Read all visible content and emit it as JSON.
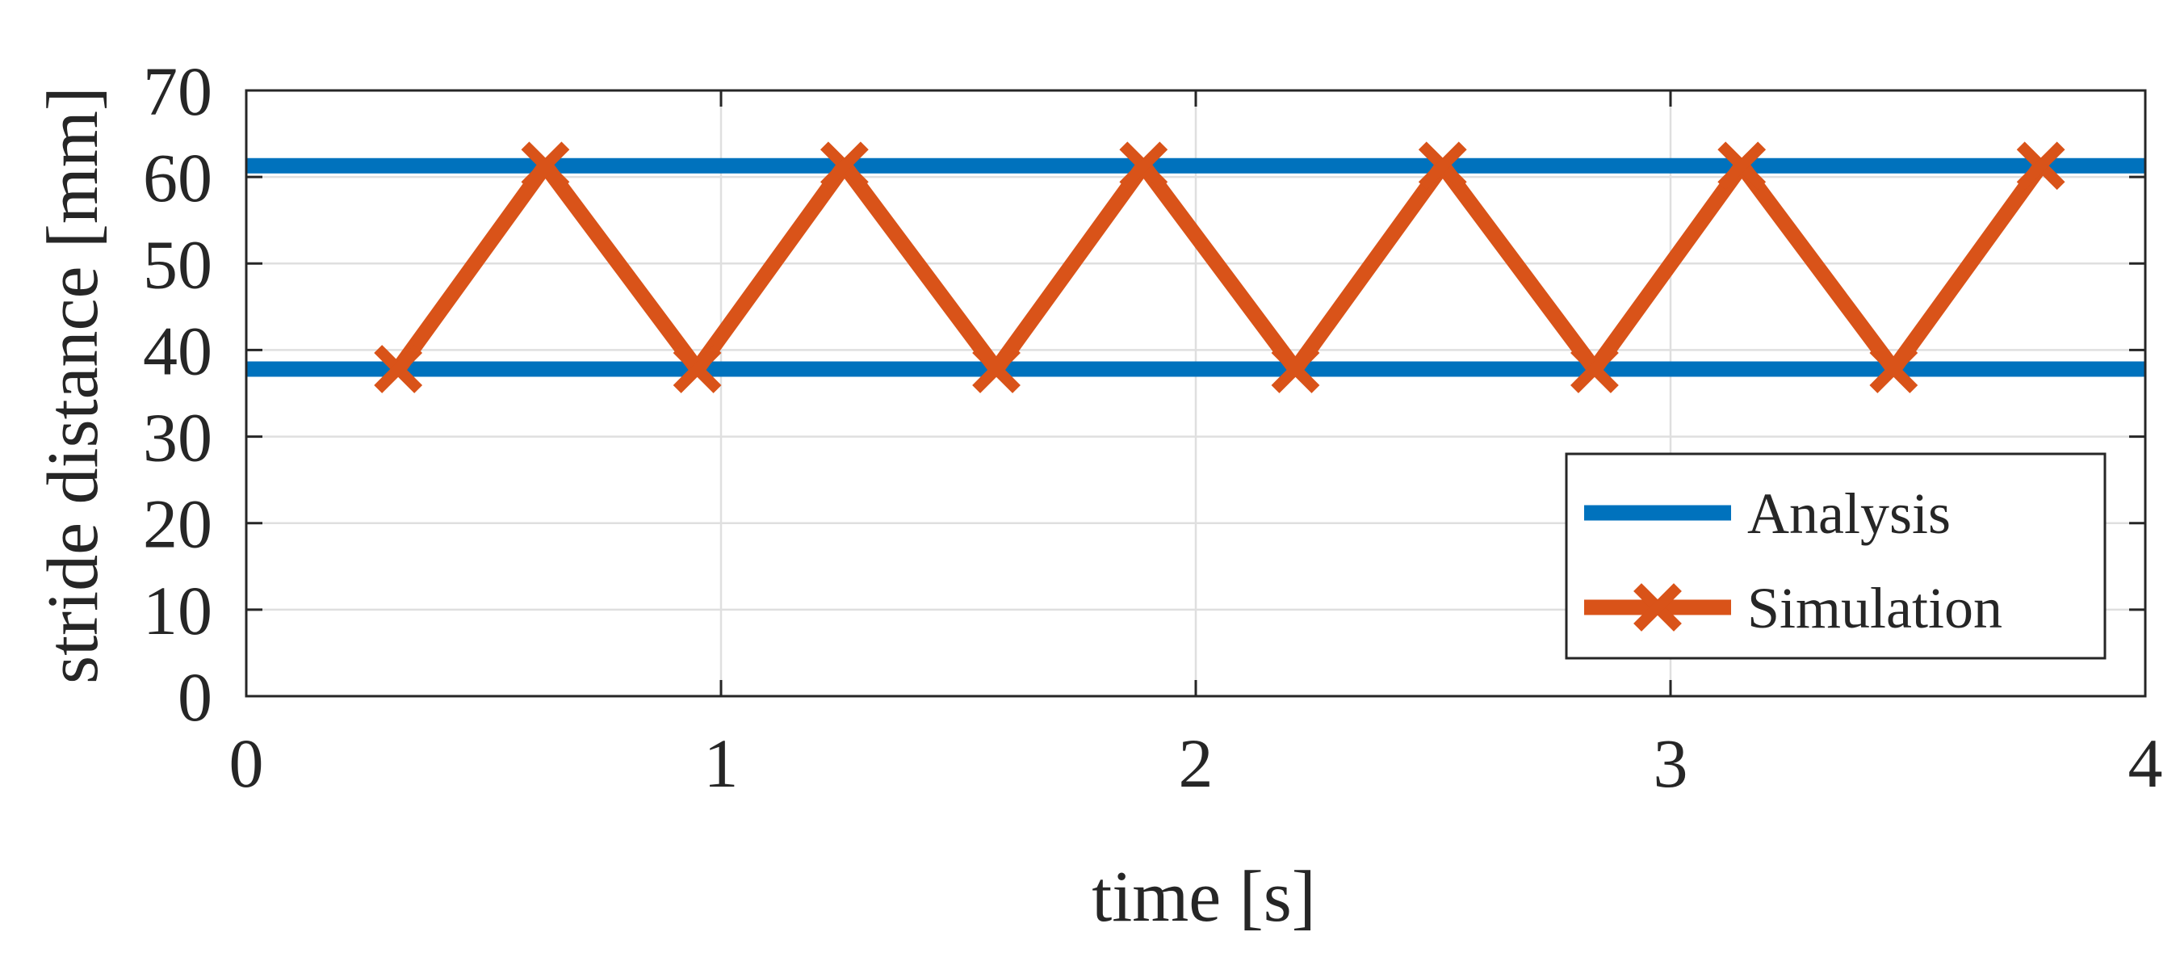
{
  "chart_data": {
    "type": "line",
    "title": "",
    "xlabel": "time [s]",
    "ylabel": "stride distance [mm]",
    "xlim": [
      0,
      4
    ],
    "ylim": [
      0,
      70
    ],
    "xticks": [
      "0",
      "1",
      "2",
      "3",
      "4"
    ],
    "yticks": [
      "0",
      "10",
      "20",
      "30",
      "40",
      "50",
      "60",
      "70"
    ],
    "grid": true,
    "legend_position": "lower-right",
    "series": [
      {
        "name": "Analysis",
        "kind": "reference-lines",
        "color": "#0072BD",
        "marker": "none",
        "y_levels": [
          61.3,
          37.8
        ]
      },
      {
        "name": "Simulation",
        "kind": "line",
        "color": "#D95319",
        "marker": "x",
        "x": [
          0.32,
          0.63,
          0.95,
          1.26,
          1.58,
          1.89,
          2.21,
          2.52,
          2.84,
          3.15,
          3.47,
          3.78
        ],
        "y": [
          37.8,
          61.3,
          37.8,
          61.3,
          37.8,
          61.3,
          37.8,
          61.3,
          37.8,
          61.3,
          37.8,
          61.3
        ]
      }
    ]
  }
}
